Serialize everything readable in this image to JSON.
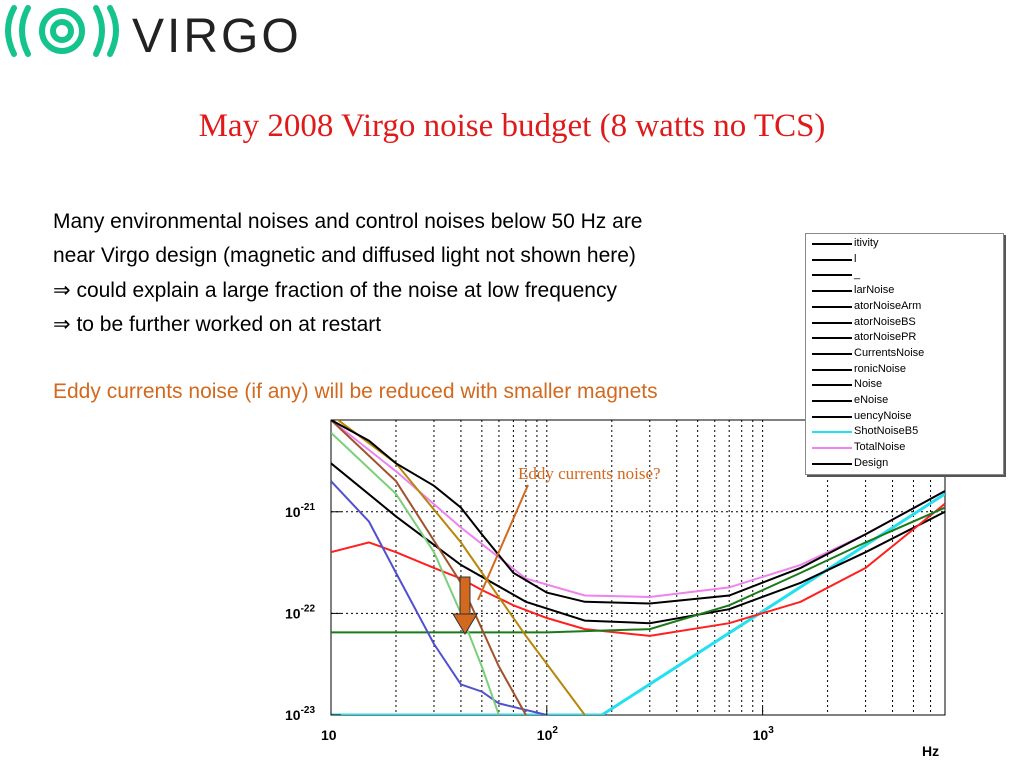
{
  "header": {
    "logo_text": "VIRGO",
    "title": "May 2008 Virgo noise budget (8 watts no TCS)"
  },
  "body_text": {
    "line1": "Many environmental noises and control noises below 50 Hz are",
    "line2": " near Virgo design (magnetic and diffused light not shown here)",
    "arrow_glyph": "⇒",
    "line3": "could explain a large fraction of the noise at low frequency",
    "line4": "to be further worked on at restart",
    "eddy_statement": "Eddy currents noise (if any) will be reduced with smaller magnets"
  },
  "colors": {
    "title": "#e01a1a",
    "eddy_statement": "#d2691e",
    "logo_green": "#14c48c",
    "arrow_fill": "#d2691e"
  },
  "legend": [
    {
      "label": "itivity",
      "color": "#000000"
    },
    {
      "label": "l",
      "color": "#000000"
    },
    {
      "label": "_",
      "color": "#000000"
    },
    {
      "label": "larNoise",
      "color": "#000000"
    },
    {
      "label": "atorNoiseArm",
      "color": "#000000"
    },
    {
      "label": "atorNoiseBS",
      "color": "#000000"
    },
    {
      "label": "atorNoisePR",
      "color": "#000000"
    },
    {
      "label": "CurrentsNoise",
      "color": "#000000"
    },
    {
      "label": "ronicNoise",
      "color": "#000000"
    },
    {
      "label": "Noise",
      "color": "#000000"
    },
    {
      "label": "eNoise",
      "color": "#000000"
    },
    {
      "label": "uencyNoise",
      "color": "#000000"
    },
    {
      "label": "ShotNoiseB5",
      "color": "#22e0f0"
    },
    {
      "label": "TotalNoise",
      "color": "#ee82ee"
    },
    {
      "label": "Design",
      "color": "#000000"
    }
  ],
  "chart_data": {
    "type": "line",
    "x_scale": "log",
    "y_scale": "log",
    "xlim": [
      10,
      7000
    ],
    "ylim": [
      1e-23,
      8e-21
    ],
    "xlabel": "Hz",
    "ylabel": "",
    "x_ticks": [
      {
        "value": 10,
        "base": "10",
        "exp": ""
      },
      {
        "value": 100,
        "base": "10",
        "exp": "2"
      },
      {
        "value": 1000,
        "base": "10",
        "exp": "3"
      }
    ],
    "y_ticks": [
      {
        "value": 1e-21,
        "base": "10",
        "exp": "-21"
      },
      {
        "value": 1e-22,
        "base": "10",
        "exp": "-22"
      },
      {
        "value": 1e-23,
        "base": "10",
        "exp": "-23"
      }
    ],
    "grid": true,
    "annotation": {
      "text": "Eddy currents noise?",
      "x": 50,
      "y": 1.1e-22
    },
    "series": [
      {
        "name": "ShotNoiseB5",
        "color": "#22e0f0",
        "x": [
          10,
          180,
          7000
        ],
        "y": [
          1e-23,
          1e-23,
          1.5e-21
        ]
      },
      {
        "name": "TotalNoise",
        "color": "#ee82ee",
        "x": [
          10,
          20,
          40,
          80,
          150,
          300,
          700,
          1500,
          3000,
          7000
        ],
        "y": [
          8e-21,
          2.5e-21,
          7e-22,
          2.2e-22,
          1.5e-22,
          1.45e-22,
          1.8e-22,
          3e-22,
          6e-22,
          1.6e-21
        ]
      },
      {
        "name": "Design",
        "color": "#000000",
        "x": [
          10,
          20,
          40,
          80,
          150,
          300,
          700,
          1500,
          3000,
          7000
        ],
        "y": [
          3e-21,
          9e-22,
          3e-22,
          1.3e-22,
          8.5e-23,
          8e-23,
          1.1e-22,
          2e-22,
          4e-22,
          1e-21
        ]
      },
      {
        "name": "",
        "color": "#ff2020",
        "x": [
          10,
          15,
          20,
          30,
          40,
          50,
          70,
          100,
          150,
          300,
          700,
          1500,
          3000,
          7000
        ],
        "y": [
          4e-22,
          5e-22,
          4e-22,
          2.8e-22,
          2.2e-22,
          1.7e-22,
          1.2e-22,
          9e-23,
          7e-23,
          6e-23,
          8e-23,
          1.3e-22,
          2.8e-22,
          1.2e-21
        ]
      },
      {
        "name": "",
        "color": "#1a7a1a",
        "x": [
          10,
          100,
          300,
          700,
          1500,
          3000,
          7000
        ],
        "y": [
          6.5e-23,
          6.5e-23,
          7e-23,
          1.2e-22,
          2.5e-22,
          5e-22,
          1.1e-21
        ]
      },
      {
        "name": "",
        "color": "#5050d0",
        "x": [
          10,
          15,
          20,
          30,
          40,
          50,
          60,
          100
        ],
        "y": [
          2e-21,
          8e-22,
          2.5e-22,
          5e-23,
          2e-23,
          1.7e-23,
          1.3e-23,
          1e-23
        ]
      },
      {
        "name": "",
        "color": "#7ad07a",
        "x": [
          10,
          20,
          30,
          40,
          50,
          60
        ],
        "y": [
          6e-21,
          1.5e-21,
          4e-22,
          1e-22,
          3e-23,
          1e-23
        ]
      },
      {
        "name": "",
        "color": "#a0522d",
        "x": [
          10,
          20,
          40,
          60,
          80
        ],
        "y": [
          8e-21,
          2e-21,
          2e-22,
          3e-23,
          1e-23
        ]
      },
      {
        "name": "",
        "color": "#b8860b",
        "x": [
          10,
          20,
          40,
          80,
          150
        ],
        "y": [
          9e-21,
          3e-21,
          5e-22,
          6e-23,
          1e-23
        ]
      },
      {
        "name": "Sensitivity",
        "color": "#000000",
        "x": [
          10,
          15,
          20,
          30,
          40,
          50,
          70,
          100,
          150,
          300,
          700,
          1500,
          3000,
          7000
        ],
        "y": [
          8e-21,
          5e-21,
          3e-21,
          1.8e-21,
          1.1e-21,
          6e-22,
          2.5e-22,
          1.6e-22,
          1.3e-22,
          1.25e-22,
          1.5e-22,
          2.8e-22,
          6e-22,
          1.6e-21
        ]
      }
    ]
  }
}
